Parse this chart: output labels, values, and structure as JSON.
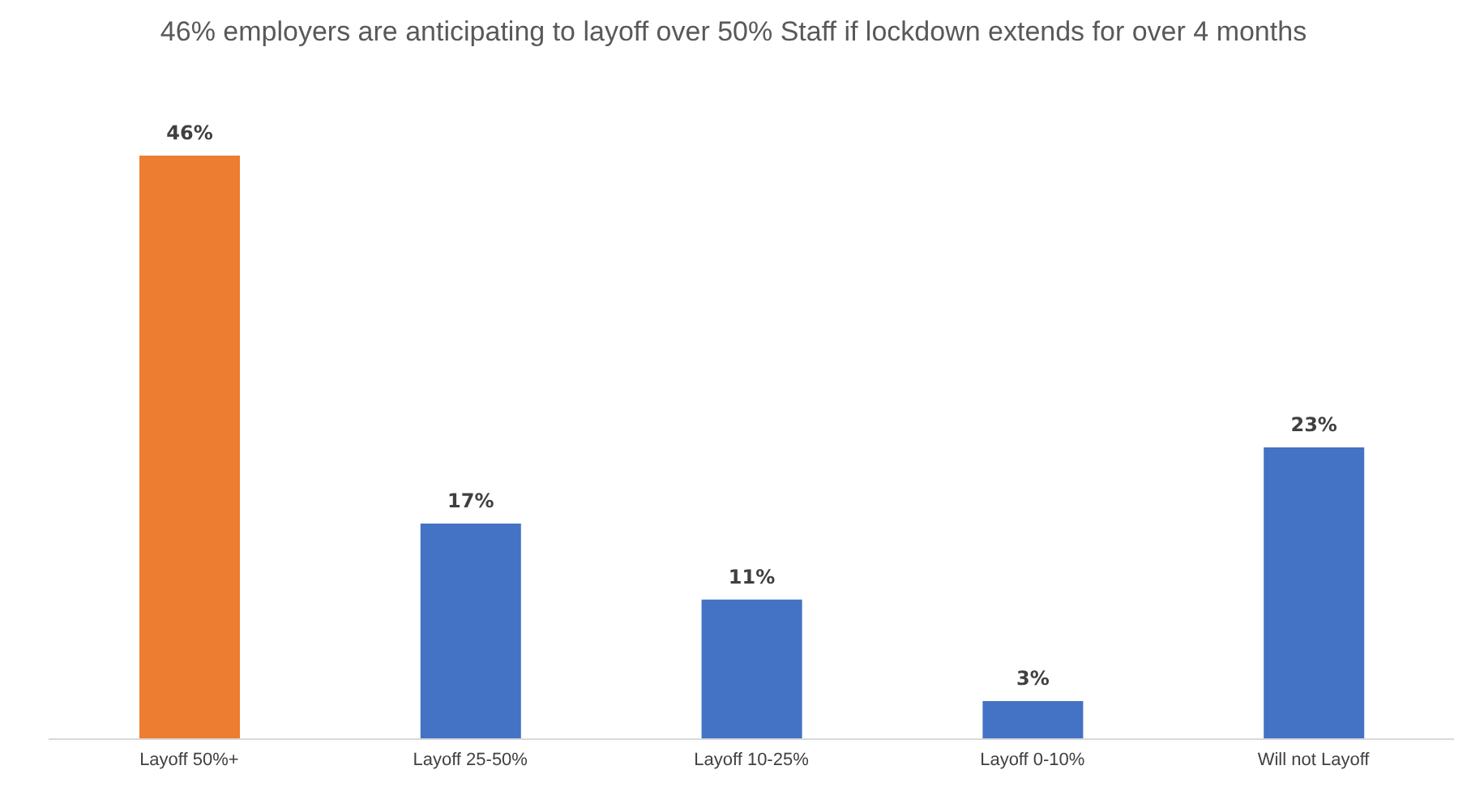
{
  "chart_data": {
    "type": "bar",
    "title": "46% employers are anticipating  to layoff over 50% Staff if lockdown extends for over 4 months",
    "categories": [
      "Layoff 50%+",
      "Layoff 25-50%",
      "Layoff 10-25%",
      "Layoff 0-10%",
      "Will not Layoff"
    ],
    "values": [
      46,
      17,
      11,
      3,
      23
    ],
    "value_labels": [
      "46%",
      "17%",
      "11%",
      "3%",
      "23%"
    ],
    "colors": [
      "#ed7d31",
      "#4472c4",
      "#4472c4",
      "#4472c4",
      "#4472c4"
    ],
    "grid": false,
    "legend": false
  }
}
